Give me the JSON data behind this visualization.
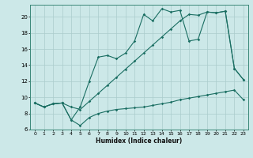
{
  "bg_color": "#cce8e8",
  "grid_color": "#aacccc",
  "line_color": "#1a6e62",
  "xlabel": "Humidex (Indice chaleur)",
  "xlim_min": -0.5,
  "xlim_max": 23.5,
  "ylim_min": 6,
  "ylim_max": 21.5,
  "yticks": [
    6,
    8,
    10,
    12,
    14,
    16,
    18,
    20
  ],
  "xticks": [
    0,
    1,
    2,
    3,
    4,
    5,
    6,
    7,
    8,
    9,
    10,
    11,
    12,
    13,
    14,
    15,
    16,
    17,
    18,
    19,
    20,
    21,
    22,
    23
  ],
  "line1_x": [
    0,
    1,
    2,
    3,
    4,
    5,
    6,
    7,
    8,
    9,
    10,
    11,
    12,
    13,
    14,
    15,
    16,
    17,
    18,
    19,
    20,
    21,
    22,
    23
  ],
  "line1_y": [
    9.3,
    8.8,
    9.2,
    9.3,
    7.2,
    6.5,
    7.5,
    8.0,
    8.3,
    8.5,
    8.6,
    8.7,
    8.8,
    9.0,
    9.2,
    9.4,
    9.7,
    9.9,
    10.1,
    10.3,
    10.5,
    10.7,
    10.9,
    9.7
  ],
  "line2_x": [
    0,
    1,
    2,
    3,
    4,
    5,
    6,
    7,
    8,
    9,
    10,
    11,
    12,
    13,
    14,
    15,
    16,
    17,
    18,
    19,
    20,
    21,
    22,
    23
  ],
  "line2_y": [
    9.3,
    8.8,
    9.2,
    9.3,
    7.2,
    8.8,
    12.0,
    15.0,
    15.2,
    14.8,
    15.5,
    17.0,
    20.3,
    19.5,
    21.0,
    20.6,
    20.8,
    17.0,
    17.2,
    20.6,
    20.5,
    20.7,
    13.6,
    12.2
  ],
  "line3_x": [
    0,
    1,
    2,
    3,
    4,
    5,
    6,
    7,
    8,
    9,
    10,
    11,
    12,
    13,
    14,
    15,
    16,
    17,
    18,
    19,
    20,
    21,
    22,
    23
  ],
  "line3_y": [
    9.3,
    8.8,
    9.2,
    9.3,
    8.8,
    8.5,
    9.5,
    10.5,
    11.5,
    12.5,
    13.5,
    14.5,
    15.5,
    16.5,
    17.5,
    18.5,
    19.5,
    20.3,
    20.2,
    20.6,
    20.5,
    20.7,
    13.6,
    12.2
  ]
}
